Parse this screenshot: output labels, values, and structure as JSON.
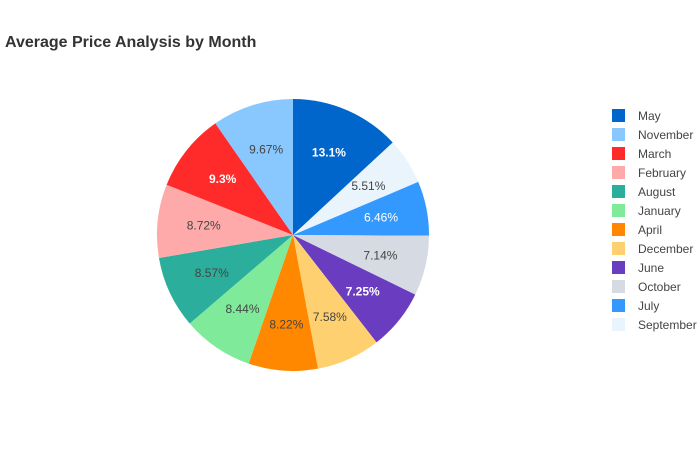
{
  "chart_data": {
    "type": "pie",
    "title": "Average Price Analysis by Month",
    "slices": [
      {
        "label": "May",
        "value": 13.1,
        "color": "#0066cc",
        "text_color": "#ffffff",
        "bold": true
      },
      {
        "label": "September",
        "value": 5.51,
        "color": "#eaf4fd",
        "text_color": "#444444",
        "bold": false
      },
      {
        "label": "July",
        "value": 6.46,
        "color": "#3399ff",
        "text_color": "#ffffff",
        "bold": false
      },
      {
        "label": "October",
        "value": 7.14,
        "color": "#d6dae3",
        "text_color": "#444444",
        "bold": false
      },
      {
        "label": "June",
        "value": 7.25,
        "color": "#6a3cbf",
        "text_color": "#ffffff",
        "bold": true
      },
      {
        "label": "December",
        "value": 7.58,
        "color": "#ffd070",
        "text_color": "#444444",
        "bold": false
      },
      {
        "label": "April",
        "value": 8.22,
        "color": "#ff8800",
        "text_color": "#444444",
        "bold": false
      },
      {
        "label": "January",
        "value": 8.44,
        "color": "#7eea9a",
        "text_color": "#444444",
        "bold": false
      },
      {
        "label": "August",
        "value": 8.57,
        "color": "#2bae9b",
        "text_color": "#444444",
        "bold": false
      },
      {
        "label": "February",
        "value": 8.72,
        "color": "#ffaaaa",
        "text_color": "#444444",
        "bold": false
      },
      {
        "label": "March",
        "value": 9.3,
        "color": "#ff2a2a",
        "text_color": "#ffffff",
        "bold": true
      },
      {
        "label": "November",
        "value": 9.67,
        "color": "#88c8ff",
        "text_color": "#444444",
        "bold": false
      }
    ],
    "labels_display": [
      "13.1%",
      "5.51%",
      "6.46%",
      "7.14%",
      "7.25%",
      "7.58%",
      "8.22%",
      "8.44%",
      "8.57%",
      "8.72%",
      "9.3%",
      "9.67%"
    ],
    "legend_order": [
      "May",
      "November",
      "March",
      "February",
      "August",
      "January",
      "April",
      "December",
      "June",
      "October",
      "July",
      "September"
    ],
    "legend_colors": [
      "#0066cc",
      "#88c8ff",
      "#ff2a2a",
      "#ffaaaa",
      "#2bae9b",
      "#7eea9a",
      "#ff8800",
      "#ffd070",
      "#6a3cbf",
      "#d6dae3",
      "#3399ff",
      "#eaf4fd"
    ],
    "legend_position": "right",
    "direction": "clockwise",
    "start": "12 o'clock"
  }
}
